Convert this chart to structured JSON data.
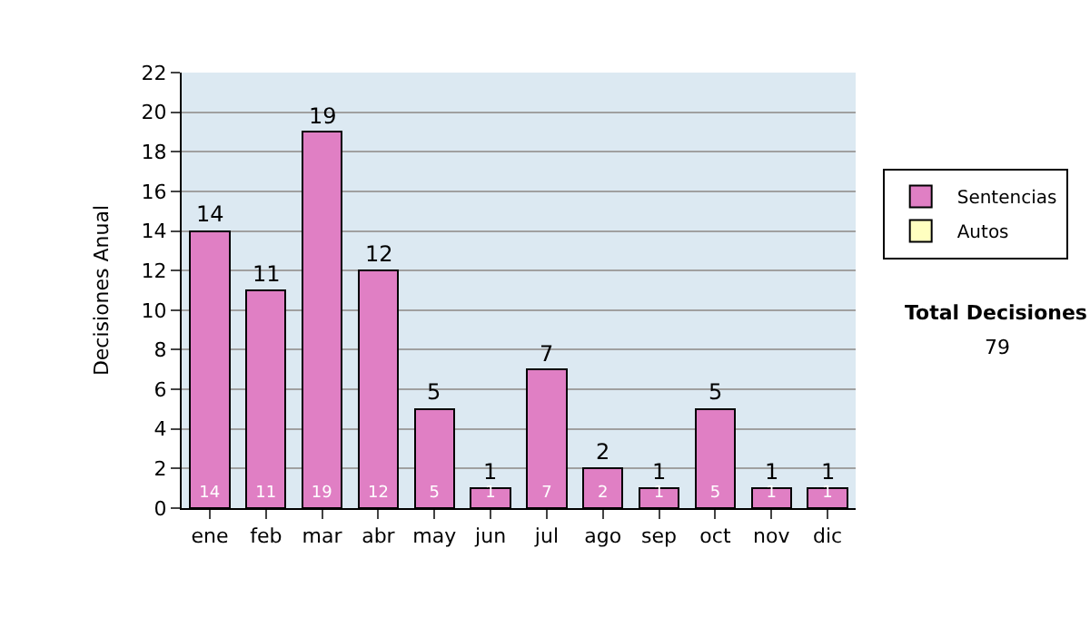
{
  "chart_data": {
    "type": "bar",
    "stacked": true,
    "ylabel": "Decisiones Anual",
    "categories": [
      "ene",
      "feb",
      "mar",
      "abr",
      "may",
      "jun",
      "jul",
      "ago",
      "sep",
      "oct",
      "nov",
      "dic"
    ],
    "series": [
      {
        "name": "Sentencias",
        "color": "#e07fc4",
        "values": [
          14,
          11,
          19,
          12,
          5,
          1,
          7,
          2,
          1,
          5,
          1,
          1
        ],
        "value_labels": [
          "14",
          "11",
          "19",
          "12",
          "5",
          "1",
          "7",
          "2",
          "1",
          "5",
          "1",
          "1"
        ]
      },
      {
        "name": "Autos",
        "color": "#ffffc0",
        "values": [
          null,
          null,
          null,
          null,
          null,
          null,
          null,
          null,
          null,
          null,
          null,
          null
        ]
      }
    ],
    "totals": [
      "14",
      "11",
      "19",
      "12",
      "5",
      "1",
      "7",
      "2",
      "1",
      "5",
      "1",
      "1"
    ],
    "ylim": [
      0,
      22
    ],
    "yticks": [
      0,
      2,
      4,
      6,
      8,
      10,
      12,
      14,
      16,
      18,
      20,
      22
    ],
    "grid": "y",
    "legend": "right",
    "annotations": [
      "Total Decisiones",
      "79"
    ]
  }
}
